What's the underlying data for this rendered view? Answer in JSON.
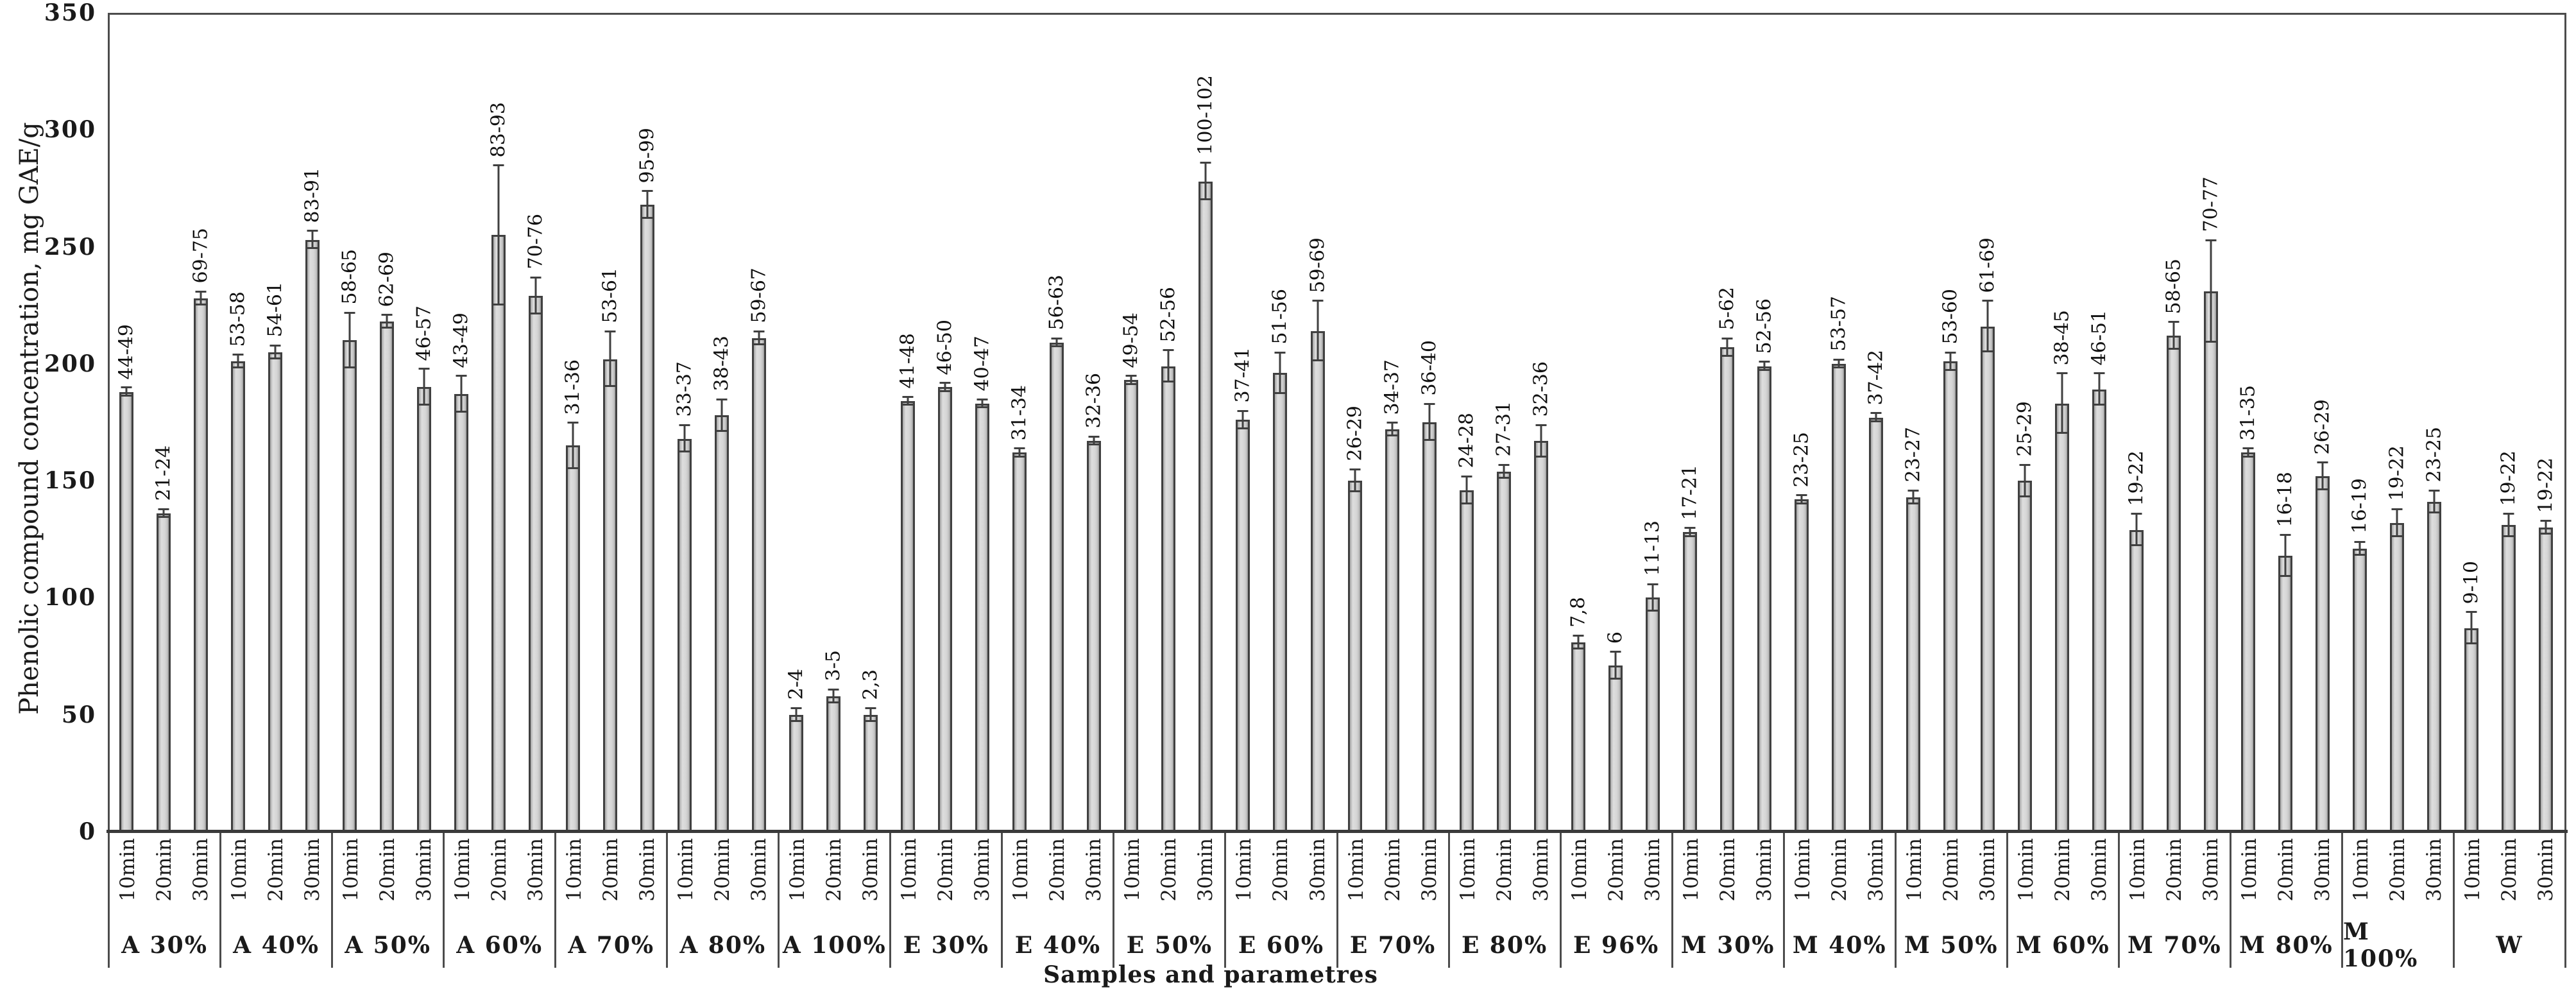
{
  "chart_data": {
    "type": "bar",
    "title": "",
    "xlabel": "Samples and parametres",
    "ylabel": "Phenolic compound concentration, mg GAE/g",
    "ylim": [
      0,
      350
    ],
    "yticks": [
      0,
      50,
      100,
      150,
      200,
      250,
      300,
      350
    ],
    "grid": false,
    "legend_position": "none",
    "bar_fill_color": "#d6d6d6",
    "bar_border_color": "#404040",
    "error_bar_color": "#404040",
    "minute_labels": [
      "10min",
      "20min",
      "30min"
    ],
    "groups": [
      {
        "name": "A 30%",
        "values": [
          188,
          136,
          228
        ],
        "errors": [
          2,
          2,
          3
        ],
        "range_labels": [
          "44-49",
          "21-24",
          "69-75"
        ]
      },
      {
        "name": "A 40%",
        "values": [
          201,
          205,
          253
        ],
        "errors": [
          3,
          3,
          4
        ],
        "range_labels": [
          "53-58",
          "54-61",
          "83-91"
        ]
      },
      {
        "name": "A 50%",
        "values": [
          210,
          218,
          190
        ],
        "errors": [
          12,
          3,
          8
        ],
        "range_labels": [
          "58-65",
          "62-69",
          "46-57"
        ]
      },
      {
        "name": "A 60%",
        "values": [
          187,
          255,
          229
        ],
        "errors": [
          8,
          30,
          8
        ],
        "range_labels": [
          "43-49",
          "83-93",
          "70-76"
        ]
      },
      {
        "name": "A 70%",
        "values": [
          165,
          202,
          268
        ],
        "errors": [
          10,
          12,
          6
        ],
        "range_labels": [
          "31-36",
          "53-61",
          "95-99"
        ]
      },
      {
        "name": "A 80%",
        "values": [
          168,
          178,
          211
        ],
        "errors": [
          6,
          7,
          3
        ],
        "range_labels": [
          "33-37",
          "38-43",
          "59-67"
        ]
      },
      {
        "name": "A 100%",
        "values": [
          50,
          58,
          50
        ],
        "errors": [
          3,
          3,
          3
        ],
        "range_labels": [
          "2-4",
          "3-5",
          "2,3"
        ]
      },
      {
        "name": "E 30%",
        "values": [
          184,
          190,
          183
        ],
        "errors": [
          2,
          2,
          2
        ],
        "range_labels": [
          "41-48",
          "46-50",
          "40-47"
        ]
      },
      {
        "name": "E 40%",
        "values": [
          162,
          209,
          167
        ],
        "errors": [
          2,
          2,
          2
        ],
        "range_labels": [
          "31-34",
          "56-63",
          "32-36"
        ]
      },
      {
        "name": "E 50%",
        "values": [
          193,
          199,
          278
        ],
        "errors": [
          2,
          7,
          8
        ],
        "range_labels": [
          "49-54",
          "52-56",
          "100-102"
        ]
      },
      {
        "name": "E 60%",
        "values": [
          176,
          196,
          214
        ],
        "errors": [
          4,
          9,
          13
        ],
        "range_labels": [
          "37-41",
          "51-56",
          "59-69"
        ]
      },
      {
        "name": "E 70%",
        "values": [
          150,
          172,
          175
        ],
        "errors": [
          5,
          3,
          8
        ],
        "range_labels": [
          "26-29",
          "34-37",
          "36-40"
        ]
      },
      {
        "name": "E 80%",
        "values": [
          146,
          154,
          167
        ],
        "errors": [
          6,
          3,
          7
        ],
        "range_labels": [
          "24-28",
          "27-31",
          "32-36"
        ]
      },
      {
        "name": "E 96%",
        "values": [
          81,
          71,
          100
        ],
        "errors": [
          3,
          6,
          6
        ],
        "range_labels": [
          "7,8",
          "6",
          "11-13"
        ]
      },
      {
        "name": "M 30%",
        "values": [
          128,
          207,
          199
        ],
        "errors": [
          2,
          4,
          2
        ],
        "range_labels": [
          "17-21",
          "5-62",
          "52-56"
        ]
      },
      {
        "name": "M 40%",
        "values": [
          142,
          200,
          177
        ],
        "errors": [
          2,
          2,
          2
        ],
        "range_labels": [
          "23-25",
          "53-57",
          "37-42"
        ]
      },
      {
        "name": "M 50%",
        "values": [
          143,
          201,
          216
        ],
        "errors": [
          3,
          4,
          11
        ],
        "range_labels": [
          "23-27",
          "53-60",
          "61-69"
        ]
      },
      {
        "name": "M 60%",
        "values": [
          150,
          183,
          189
        ],
        "errors": [
          7,
          13,
          7
        ],
        "range_labels": [
          "25-29",
          "38-45",
          "46-51"
        ]
      },
      {
        "name": "M 70%",
        "values": [
          129,
          212,
          231
        ],
        "errors": [
          7,
          6,
          22
        ],
        "range_labels": [
          "19-22",
          "58-65",
          "70-77"
        ]
      },
      {
        "name": "M 80%",
        "values": [
          162,
          118,
          152
        ],
        "errors": [
          2,
          9,
          6
        ],
        "range_labels": [
          "31-35",
          "16-18",
          "26-29"
        ]
      },
      {
        "name": "M 100%",
        "values": [
          121,
          132,
          141
        ],
        "errors": [
          3,
          6,
          5
        ],
        "range_labels": [
          "16-19",
          "19-22",
          "23-25"
        ]
      },
      {
        "name": "W",
        "values": [
          87,
          131,
          130
        ],
        "errors": [
          7,
          5,
          3
        ],
        "range_labels": [
          "9-10",
          "19-22",
          "19-22"
        ]
      }
    ]
  }
}
